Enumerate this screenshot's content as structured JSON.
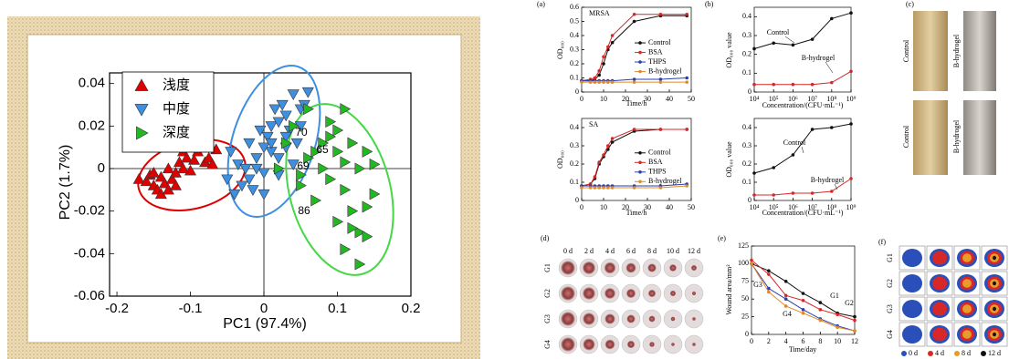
{
  "chart_data": [
    {
      "type": "scatter",
      "xlabel": "PC1 (97.4%)",
      "ylabel": "PC2 (1.7%)",
      "xlim": [
        -0.21,
        0.2
      ],
      "ylim": [
        -0.06,
        0.045
      ],
      "xticks": [
        -0.2,
        -0.1,
        0,
        0.1,
        0.2
      ],
      "yticks": [
        -0.06,
        -0.04,
        -0.02,
        0,
        0.02,
        0.04
      ],
      "zero_lines": true,
      "legend": "upper left",
      "series": [
        {
          "name": "浅度",
          "color": "#e00000",
          "marker": "triangle-up",
          "x": [
            -0.17,
            -0.16,
            -0.155,
            -0.15,
            -0.145,
            -0.14,
            -0.14,
            -0.135,
            -0.13,
            -0.125,
            -0.12,
            -0.115,
            -0.11,
            -0.105,
            -0.1,
            -0.1,
            -0.095,
            -0.09,
            -0.085,
            -0.08,
            -0.075,
            -0.07,
            -0.065,
            -0.13,
            -0.15,
            -0.12,
            -0.11
          ],
          "values": [
            -0.005,
            -0.006,
            -0.003,
            -0.008,
            -0.01,
            -0.004,
            -0.012,
            -0.007,
            0.0,
            -0.005,
            -0.002,
            0.003,
            0.008,
            0.005,
            0.01,
            -0.001,
            0.004,
            0.008,
            0.01,
            0.003,
            0.005,
            0.002,
            0.009,
            -0.01,
            -0.002,
            -0.008,
            0.0
          ]
        },
        {
          "name": "中度",
          "color": "#3f8fe0",
          "marker": "triangle-down",
          "x": [
            -0.05,
            -0.045,
            -0.04,
            -0.035,
            -0.03,
            -0.025,
            -0.02,
            -0.015,
            -0.01,
            -0.005,
            0,
            0.005,
            0.01,
            0.015,
            0.02,
            0.025,
            0.03,
            0.035,
            0.04,
            0.045,
            0.05,
            0.055,
            0.06,
            -0.02,
            0,
            0.01,
            0.02,
            0.03,
            0.02,
            0.04,
            0.0,
            -0.01,
            0.01,
            0.03,
            0.05
          ],
          "values": [
            -0.005,
            0.008,
            -0.012,
            0.002,
            -0.008,
            0.0,
            0.012,
            -0.01,
            0.005,
            0.018,
            -0.002,
            0.015,
            0.02,
            0.028,
            0.022,
            0.03,
            0.025,
            0.018,
            0.035,
            0.012,
            0.028,
            0.03,
            0.036,
            -0.005,
            -0.012,
            0.008,
            -0.003,
            0.015,
            0.005,
            0.002,
            0.01,
            0.0,
            0.012,
            0.01,
            0.02
          ]
        },
        {
          "name": "深度",
          "color": "#22b822",
          "marker": "triangle-right",
          "x": [
            0.02,
            0.03,
            0.04,
            0.05,
            0.06,
            0.06,
            0.07,
            0.08,
            0.08,
            0.09,
            0.09,
            0.1,
            0.1,
            0.11,
            0.11,
            0.12,
            0.12,
            0.13,
            0.13,
            0.14,
            0.14,
            0.15,
            0.15,
            0.11,
            0.12,
            0.13,
            0.1,
            0.14,
            0.09,
            0.07,
            0.05,
            0.11
          ],
          "values": [
            0.0,
            0.012,
            0.02,
            -0.008,
            0.028,
            0.005,
            -0.015,
            0.012,
            0.0,
            0.022,
            -0.005,
            0.018,
            0.008,
            -0.01,
            0.003,
            -0.02,
            0.012,
            -0.03,
            0.0,
            -0.032,
            0.008,
            0.002,
            -0.012,
            -0.038,
            -0.028,
            -0.045,
            -0.025,
            -0.018,
            0.015,
            0.008,
            -0.003,
            0.028
          ]
        }
      ],
      "annotations": [
        "70",
        "65",
        "69",
        "86"
      ]
    },
    {
      "type": "line",
      "title": "MRSA",
      "xlabel": "Time/h",
      "ylabel": "OD₆₀₀",
      "xlim": [
        0,
        50
      ],
      "ylim": [
        0,
        0.6
      ],
      "xticks": [
        0,
        10,
        20,
        30,
        40,
        50
      ],
      "yticks": [
        0,
        0.1,
        0.2,
        0.3,
        0.4,
        0.5,
        0.6
      ],
      "legend": "center right",
      "x": [
        0,
        4,
        6,
        8,
        10,
        12,
        14,
        24,
        36,
        48
      ],
      "series": [
        {
          "name": "Control",
          "color": "#111111",
          "values": [
            0.08,
            0.08,
            0.09,
            0.12,
            0.2,
            0.3,
            0.35,
            0.5,
            0.54,
            0.54
          ]
        },
        {
          "name": "BSA",
          "color": "#d62828",
          "values": [
            0.08,
            0.09,
            0.1,
            0.15,
            0.25,
            0.32,
            0.4,
            0.55,
            0.55,
            0.55
          ]
        },
        {
          "name": "THPS",
          "color": "#2a3fb0",
          "values": [
            0.08,
            0.08,
            0.08,
            0.08,
            0.08,
            0.08,
            0.08,
            0.09,
            0.09,
            0.1
          ]
        },
        {
          "name": "B-hydrogel",
          "color": "#e08a2a",
          "values": [
            0.07,
            0.07,
            0.07,
            0.07,
            0.07,
            0.07,
            0.07,
            0.07,
            0.07,
            0.07
          ]
        }
      ]
    },
    {
      "type": "line",
      "xlabel": "Concentration/(CFU·mL⁻¹)",
      "ylabel": "OD₆₀₀ value",
      "xlog": true,
      "xlim": [
        10000,
        1000000000
      ],
      "ylim": [
        0,
        0.45
      ],
      "xticks": [
        {
          "value": 10000,
          "label": "10⁴"
        },
        {
          "value": 100000,
          "label": "10⁵"
        },
        {
          "value": 1000000,
          "label": "10⁶"
        },
        {
          "value": 10000000,
          "label": "10⁷"
        },
        {
          "value": 100000000,
          "label": "10⁸"
        },
        {
          "value": 1000000000,
          "label": "10⁹"
        }
      ],
      "yticks": [
        0,
        0.1,
        0.2,
        0.3,
        0.4
      ],
      "x": [
        10000,
        100000,
        1000000,
        10000000,
        100000000,
        1000000000
      ],
      "series": [
        {
          "name": "Control",
          "color": "#111111",
          "values": [
            0.23,
            0.26,
            0.25,
            0.28,
            0.39,
            0.42
          ]
        },
        {
          "name": "B-hydrogel",
          "color": "#d62828",
          "values": [
            0.04,
            0.04,
            0.04,
            0.04,
            0.05,
            0.11
          ]
        }
      ],
      "annotations": [
        "Control",
        "B-hydrogel"
      ]
    },
    {
      "type": "line",
      "title": "SA",
      "xlabel": "Time/h",
      "ylabel": "OD₆₀₀",
      "xlim": [
        0,
        50
      ],
      "ylim": [
        0,
        0.45
      ],
      "xticks": [
        0,
        10,
        20,
        30,
        40,
        50
      ],
      "yticks": [
        0,
        0.1,
        0.2,
        0.3,
        0.4
      ],
      "legend": "center right",
      "x": [
        0,
        4,
        6,
        8,
        10,
        12,
        14,
        24,
        36,
        48
      ],
      "series": [
        {
          "name": "Control",
          "color": "#111111",
          "values": [
            0.08,
            0.09,
            0.12,
            0.2,
            0.24,
            0.28,
            0.32,
            0.38,
            0.39,
            0.39
          ]
        },
        {
          "name": "BSA",
          "color": "#d62828",
          "values": [
            0.08,
            0.09,
            0.13,
            0.21,
            0.25,
            0.3,
            0.34,
            0.39,
            0.39,
            0.39
          ]
        },
        {
          "name": "THPS",
          "color": "#2a3fb0",
          "values": [
            0.08,
            0.08,
            0.08,
            0.08,
            0.08,
            0.08,
            0.08,
            0.08,
            0.08,
            0.09
          ]
        },
        {
          "name": "B-hydrogel",
          "color": "#e08a2a",
          "values": [
            0.07,
            0.07,
            0.07,
            0.07,
            0.07,
            0.07,
            0.07,
            0.07,
            0.07,
            0.08
          ]
        }
      ]
    },
    {
      "type": "line",
      "xlabel": "Concentration/(CFU·mL⁻¹)",
      "ylabel": "OD₆₀₀ value",
      "xlog": true,
      "xlim": [
        10000,
        1000000000
      ],
      "ylim": [
        0,
        0.45
      ],
      "xticks": [
        {
          "value": 10000,
          "label": "10⁴"
        },
        {
          "value": 100000,
          "label": "10⁵"
        },
        {
          "value": 1000000,
          "label": "10⁶"
        },
        {
          "value": 10000000,
          "label": "10⁷"
        },
        {
          "value": 100000000,
          "label": "10⁸"
        },
        {
          "value": 1000000000,
          "label": "10⁹"
        }
      ],
      "yticks": [
        0,
        0.1,
        0.2,
        0.3,
        0.4
      ],
      "x": [
        10000,
        100000,
        1000000,
        10000000,
        100000000,
        1000000000
      ],
      "series": [
        {
          "name": "Control",
          "color": "#111111",
          "values": [
            0.15,
            0.18,
            0.25,
            0.39,
            0.4,
            0.42
          ]
        },
        {
          "name": "B-hydrogel",
          "color": "#d62828",
          "values": [
            0.03,
            0.03,
            0.04,
            0.04,
            0.05,
            0.12
          ]
        }
      ],
      "annotations": [
        "Control",
        "B-hydrogel"
      ]
    },
    {
      "type": "line",
      "xlabel": "Time/day",
      "ylabel": "Wound area/mm²",
      "xlim": [
        0,
        12
      ],
      "ylim": [
        0,
        125
      ],
      "xticks": [
        0,
        2,
        4,
        6,
        8,
        10,
        12
      ],
      "yticks": [
        0,
        25,
        50,
        75,
        100,
        125
      ],
      "x": [
        0,
        2,
        4,
        6,
        8,
        10,
        12
      ],
      "series": [
        {
          "name": "G1",
          "color": "#111111",
          "values": [
            100,
            90,
            75,
            58,
            45,
            30,
            25
          ]
        },
        {
          "name": "G2",
          "color": "#d62828",
          "values": [
            105,
            85,
            55,
            48,
            35,
            28,
            20
          ]
        },
        {
          "name": "G3",
          "color": "#2a3fb0",
          "values": [
            100,
            65,
            50,
            35,
            22,
            12,
            5
          ]
        },
        {
          "name": "G4",
          "color": "#e08a2a",
          "values": [
            100,
            60,
            40,
            30,
            20,
            10,
            5
          ]
        }
      ],
      "annotations": [
        "G1",
        "G2",
        "G3",
        "G4"
      ]
    }
  ],
  "panel_labels": [
    "(a)",
    "(b)",
    "(c)",
    "(d)",
    "(e)",
    "(f)"
  ],
  "photo_c": {
    "labels": [
      "Control",
      "B-hydrogel",
      "Control",
      "B-hydrogel"
    ]
  },
  "photo_d": {
    "columns": [
      "0 d",
      "2 d",
      "4 d",
      "6 d",
      "8 d",
      "10 d",
      "12 d"
    ],
    "rows": [
      "G1",
      "G2",
      "G3",
      "G4"
    ]
  },
  "photo_f": {
    "rows": [
      "G1",
      "G2",
      "G3",
      "G4"
    ],
    "legend": [
      {
        "label": "0 d",
        "color": "#2a4fb8"
      },
      {
        "label": "4 d",
        "color": "#d62828"
      },
      {
        "label": "8 d",
        "color": "#e89a2a"
      },
      {
        "label": "12 d",
        "color": "#111111"
      }
    ]
  }
}
